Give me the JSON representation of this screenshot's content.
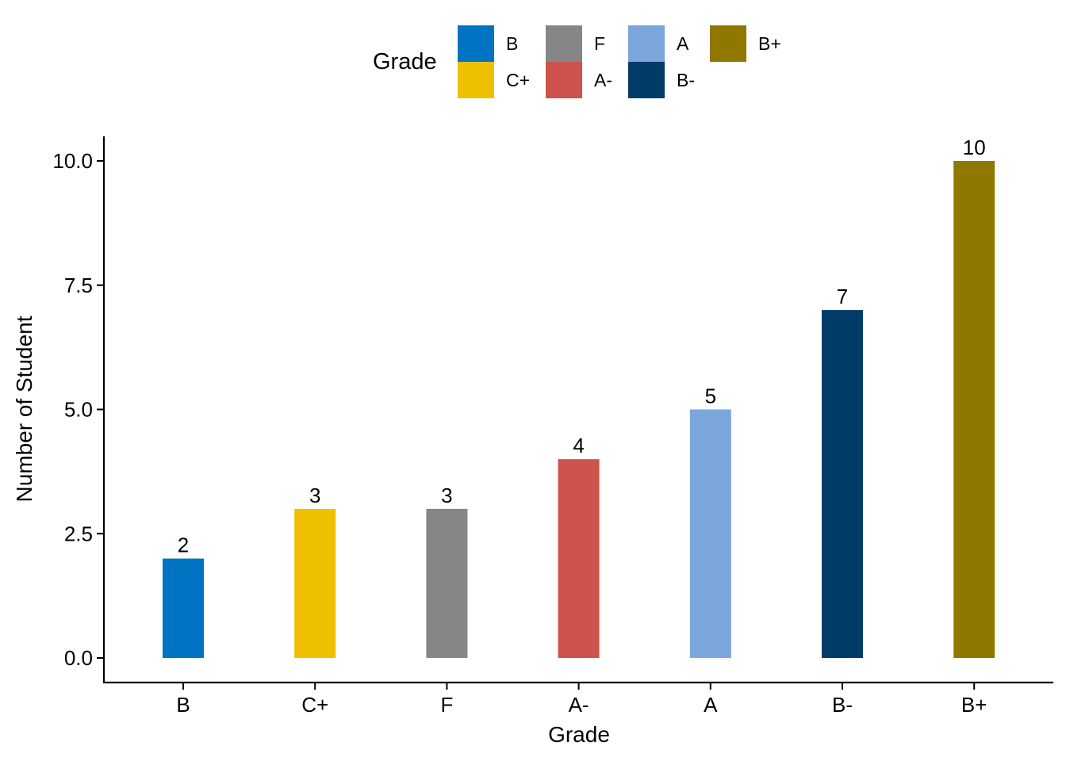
{
  "chart_data": {
    "type": "bar",
    "categories": [
      "B",
      "C+",
      "F",
      "A-",
      "A",
      "B-",
      "B+"
    ],
    "values": [
      2,
      3,
      3,
      4,
      5,
      7,
      10
    ],
    "data_labels": [
      "2",
      "3",
      "3",
      "4",
      "5",
      "7",
      "10"
    ],
    "colors": [
      "#0073C2",
      "#EFC000",
      "#868686",
      "#CD534C",
      "#7AA6DC",
      "#003C67",
      "#8F7700"
    ],
    "xlabel": "Grade",
    "ylabel": "Number of Student",
    "ylim": [
      0,
      10.5
    ],
    "yticks": [
      "0.0",
      "2.5",
      "5.0",
      "7.5",
      "10.0"
    ],
    "grid": false,
    "legend": {
      "title": "Grade",
      "placement": "top",
      "entries": [
        {
          "label": "B",
          "color": "#0073C2"
        },
        {
          "label": "C+",
          "color": "#EFC000"
        },
        {
          "label": "F",
          "color": "#868686"
        },
        {
          "label": "A-",
          "color": "#CD534C"
        },
        {
          "label": "A",
          "color": "#7AA6DC"
        },
        {
          "label": "B-",
          "color": "#003C67"
        },
        {
          "label": "B+",
          "color": "#8F7700"
        }
      ]
    }
  }
}
